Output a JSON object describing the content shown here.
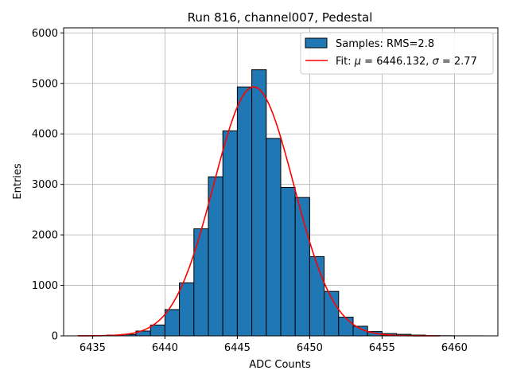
{
  "chart_data": {
    "type": "bar",
    "title": "Run 816, channel007, Pedestal",
    "xlabel": "ADC Counts",
    "ylabel": "Entries",
    "xlim": [
      6433,
      6463
    ],
    "ylim": [
      0,
      6100
    ],
    "grid": true,
    "legend_placement": "top-right",
    "bin_width": 1,
    "histogram": {
      "name": "Samples: RMS=2.8",
      "color": "#1f77b4",
      "bin_starts": [
        6434,
        6435,
        6436,
        6437,
        6438,
        6439,
        6440,
        6441,
        6442,
        6443,
        6444,
        6445,
        6446,
        6447,
        6448,
        6449,
        6450,
        6451,
        6452,
        6453,
        6454,
        6455,
        6456,
        6457,
        6458,
        6459,
        6460,
        6461
      ],
      "values": [
        3,
        7,
        15,
        28,
        95,
        215,
        520,
        1050,
        2120,
        3150,
        4060,
        4930,
        5270,
        3910,
        2940,
        2740,
        1570,
        880,
        370,
        190,
        85,
        45,
        30,
        15,
        5,
        3,
        1,
        1
      ]
    },
    "fit": {
      "name": "Fit: μ = 6446.132, σ = 2.77",
      "label_prefix": "Fit: ",
      "mu_symbol": "μ",
      "mu_text": " = 6446.132, ",
      "sigma_symbol": "σ",
      "sigma_text": " = 2.77",
      "color": "#ff0000",
      "mu": 6446.132,
      "sigma": 2.77,
      "amplitude": 4930,
      "x_range": [
        6434,
        6459
      ]
    },
    "x_ticks": [
      6435,
      6440,
      6445,
      6450,
      6455,
      6460
    ],
    "y_ticks": [
      0,
      1000,
      2000,
      3000,
      4000,
      5000,
      6000
    ]
  }
}
